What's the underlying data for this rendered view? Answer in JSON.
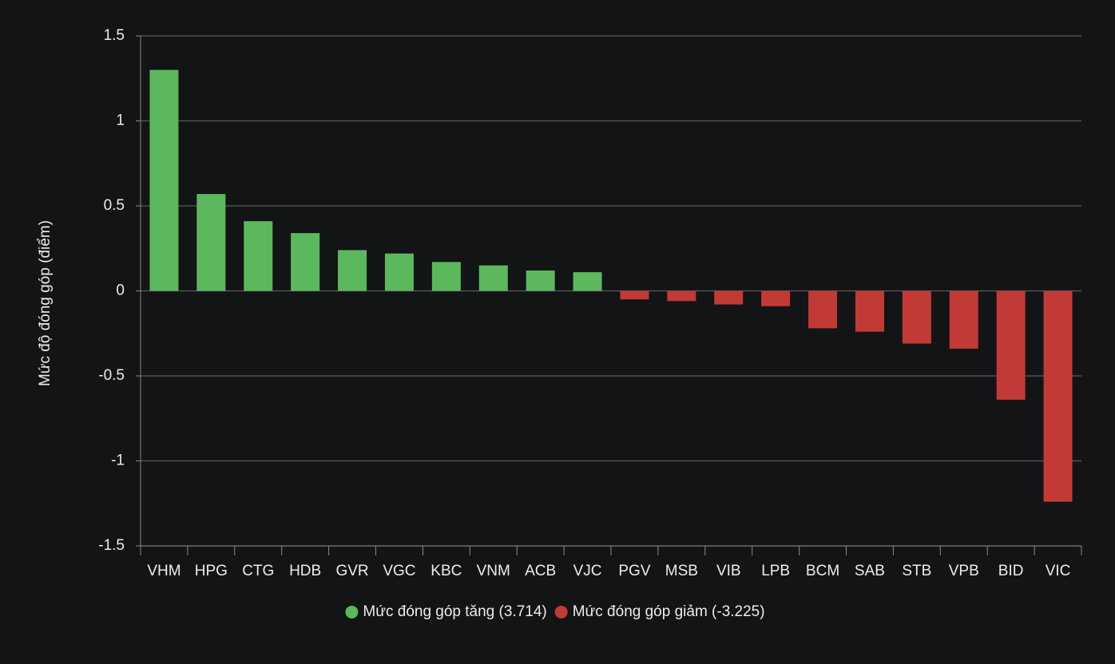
{
  "chart_data": {
    "type": "bar",
    "y_label": "Mức độ đóng góp (điểm)",
    "categories": [
      "VHM",
      "HPG",
      "CTG",
      "HDB",
      "GVR",
      "VGC",
      "KBC",
      "VNM",
      "ACB",
      "VJC",
      "PGV",
      "MSB",
      "VIB",
      "LPB",
      "BCM",
      "SAB",
      "STB",
      "VPB",
      "BID",
      "VIC"
    ],
    "series": [
      {
        "name": "Mức đóng góp tăng (3.714)",
        "color": "#5cb85c",
        "values": [
          1.3,
          0.57,
          0.41,
          0.34,
          0.24,
          0.22,
          0.17,
          0.15,
          0.12,
          0.11,
          null,
          null,
          null,
          null,
          null,
          null,
          null,
          null,
          null,
          null
        ]
      },
      {
        "name": "Mức đóng góp giảm (-3.225)",
        "color": "#c23a35",
        "values": [
          null,
          null,
          null,
          null,
          null,
          null,
          null,
          null,
          null,
          null,
          -0.05,
          -0.06,
          -0.08,
          -0.09,
          -0.22,
          -0.24,
          -0.31,
          -0.34,
          -0.64,
          -1.24
        ]
      }
    ],
    "ylim": [
      -1.5,
      1.5
    ],
    "yticks": [
      1.5,
      1,
      0.5,
      0,
      -0.5,
      -1,
      -1.5
    ],
    "grid": true
  }
}
